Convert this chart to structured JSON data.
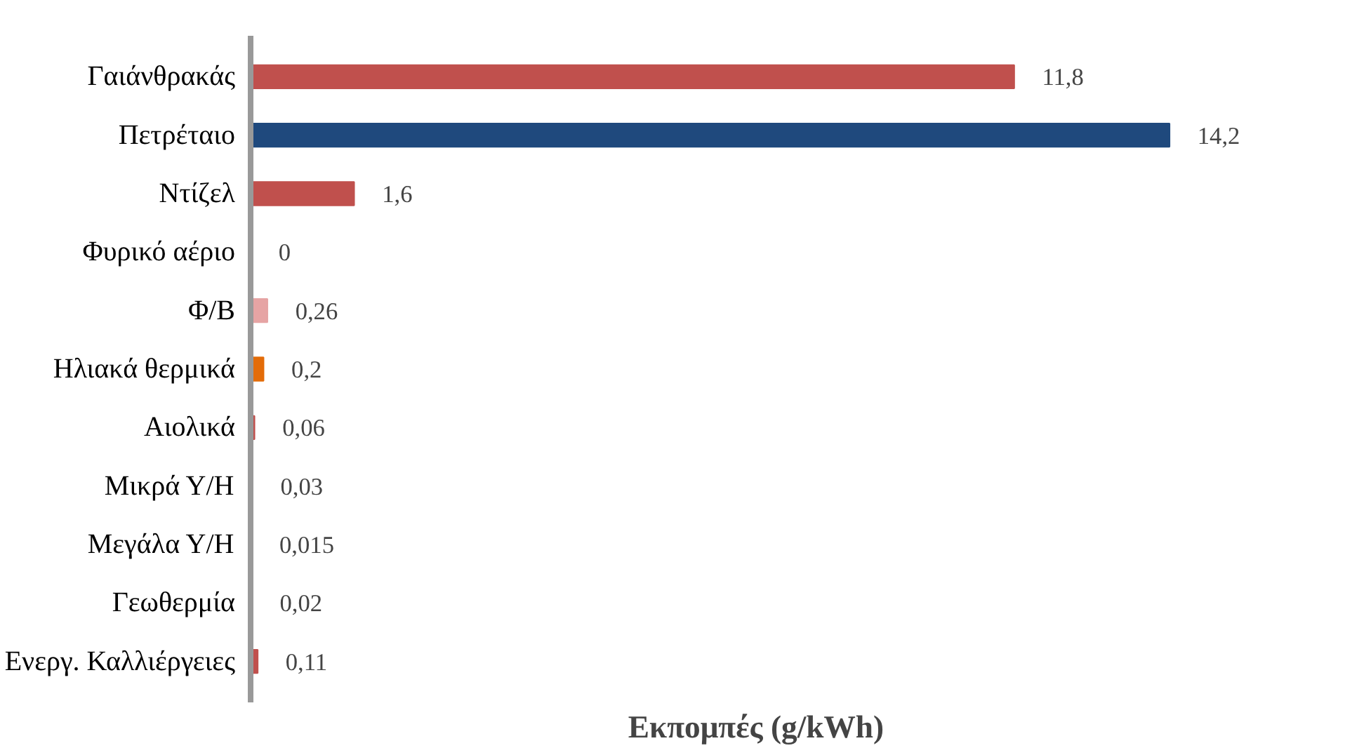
{
  "chart_data": {
    "type": "bar",
    "orientation": "horizontal",
    "xlabel": "Εκπομπές (g/kWh)",
    "categories": [
      "Γαιάνθρακάς",
      "Πετρέταιο",
      "Ντίζελ",
      "Φυρικό αέριο",
      "Φ/Β",
      "Ηλιακά θερμικά",
      "Αιολικά",
      "Μικρά Υ/Η",
      "Μεγάλα Υ/Η",
      "Γεωθερμία",
      "Ενεργ. Καλλιέργειες"
    ],
    "values": [
      11.8,
      14.2,
      1.6,
      0,
      0.26,
      0.2,
      0.06,
      0.03,
      0.015,
      0.02,
      0.11
    ],
    "colors": [
      "#c0504d",
      "#1f497d",
      "#c0504d",
      "#4f81bd",
      "#e6a4a4",
      "#e36c09",
      "#c0504d",
      "#9bbb59",
      "#c0504d",
      "#7030a0",
      "#c0504d"
    ],
    "value_labels": [
      "11,8",
      "14,2",
      "1,6",
      "0",
      "0,26",
      "0,2",
      "0,06",
      "0,03",
      "0,015",
      "0,02",
      "0,11"
    ],
    "grid": false
  }
}
